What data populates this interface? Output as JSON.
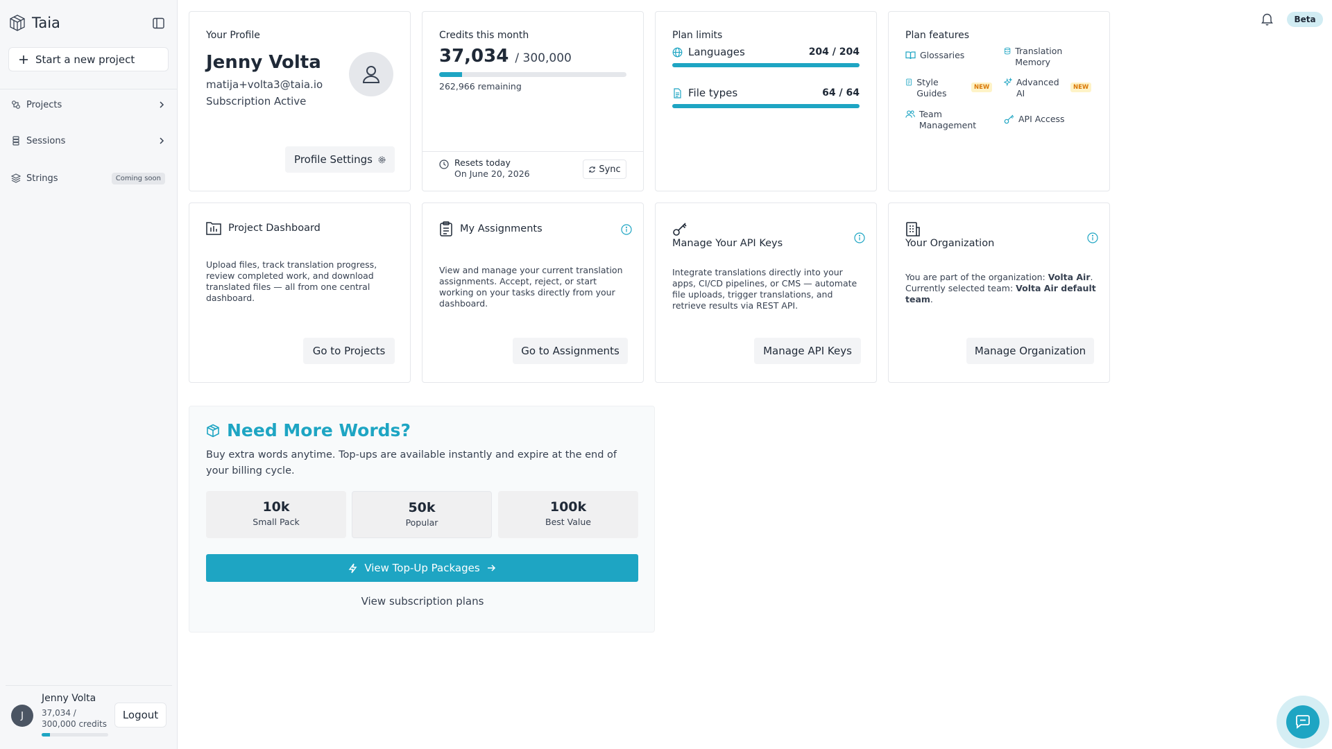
{
  "app": {
    "name": "Taia"
  },
  "sidebar": {
    "new_project_label": "Start a new project",
    "items": [
      {
        "label": "Projects",
        "icon": "projects-icon"
      },
      {
        "label": "Sessions",
        "icon": "sessions-icon"
      },
      {
        "label": "Strings",
        "icon": "layers-icon",
        "badge": "Coming soon"
      }
    ],
    "user": {
      "initial": "J",
      "name": "Jenny Volta",
      "credits_text": "37,034 / 300,000 credits",
      "credits_fraction": 0.123,
      "logout_label": "Logout"
    }
  },
  "header": {
    "badge": "Beta"
  },
  "profile": {
    "label": "Your Profile",
    "name": "Jenny Volta",
    "email": "matija+volta3@taia.io",
    "status": "Subscription Active",
    "settings_label": "Profile Settings"
  },
  "credits": {
    "label": "Credits this month",
    "used": "37,034",
    "total": "/ 300,000",
    "fraction": 0.123,
    "remaining": "262,966 remaining",
    "reset_line1": "Resets today",
    "reset_line2": "On June 20, 2026",
    "sync_label": "Sync"
  },
  "limits": {
    "label": "Plan limits",
    "rows": [
      {
        "name": "Languages",
        "value": "204 / 204",
        "fraction": 1.0
      },
      {
        "name": "File types",
        "value": "64 / 64",
        "fraction": 1.0
      }
    ]
  },
  "features": {
    "label": "Plan features",
    "items": [
      {
        "label": "Glossaries"
      },
      {
        "label": "Translation Memory"
      },
      {
        "label": "Style Guides",
        "badge": "NEW"
      },
      {
        "label": "Advanced AI",
        "badge": "NEW"
      },
      {
        "label": "Team Management"
      },
      {
        "label": "API Access"
      }
    ]
  },
  "cards": {
    "projects": {
      "title": "Project Dashboard",
      "desc": "Upload files, track translation progress, review completed work, and download translated files — all from one central dashboard.",
      "button": "Go to Projects"
    },
    "assignments": {
      "title": "My Assignments",
      "desc": "View and manage your current translation assignments. Accept, reject, or start working on your tasks directly from your dashboard.",
      "button": "Go to Assignments"
    },
    "api": {
      "title": "Manage Your API Keys",
      "desc": "Integrate translations directly into your apps, CI/CD pipelines, or CMS — automate file uploads, trigger translations, and retrieve results via REST API.",
      "button": "Manage API Keys"
    },
    "org": {
      "title": "Your Organization",
      "desc_prefix": "You are part of the organization: ",
      "org_name": "Volta Air",
      "desc_mid": ". Currently selected team: ",
      "team_name": "Volta Air default team",
      "desc_suffix": ".",
      "button": "Manage Organization"
    }
  },
  "topup": {
    "title": "Need More Words?",
    "desc": "Buy extra words anytime. Top-ups are available instantly and expire at the end of your billing cycle.",
    "packs": [
      {
        "amount": "10k",
        "label": "Small Pack"
      },
      {
        "amount": "50k",
        "label": "Popular"
      },
      {
        "amount": "100k",
        "label": "Best Value"
      }
    ],
    "button": "View Top-Up Packages",
    "link": "View subscription plans"
  },
  "colors": {
    "accent": "#1ea5c3",
    "new_badge": "#fef3c7"
  }
}
